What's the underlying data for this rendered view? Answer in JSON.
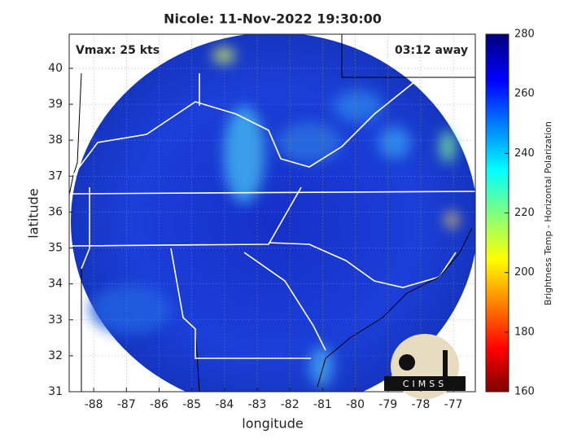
{
  "chart_data": {
    "type": "map",
    "title": "Nicole: 11-Nov-2022 19:30:00",
    "annotations": [
      "Vmax: 25 kts",
      "03:12 away"
    ],
    "xlabel": "longitude",
    "ylabel": "latitude",
    "xlim": [
      -88.75,
      -76.33
    ],
    "xticks": [
      -88,
      -87,
      -86,
      -85,
      -84,
      -83,
      -82,
      -81,
      -80,
      -79,
      -78,
      -77
    ],
    "ylim": [
      31,
      40.95
    ],
    "yticks": [
      31,
      32,
      33,
      34,
      35,
      36,
      37,
      38,
      39,
      40
    ],
    "grid": true,
    "colorbar": {
      "label": "Brightness Temp - Horizontal Polarization",
      "lim": [
        160,
        280
      ],
      "ticks": [
        160,
        180,
        200,
        220,
        240,
        260,
        280
      ]
    },
    "logo": "CIMSS"
  }
}
